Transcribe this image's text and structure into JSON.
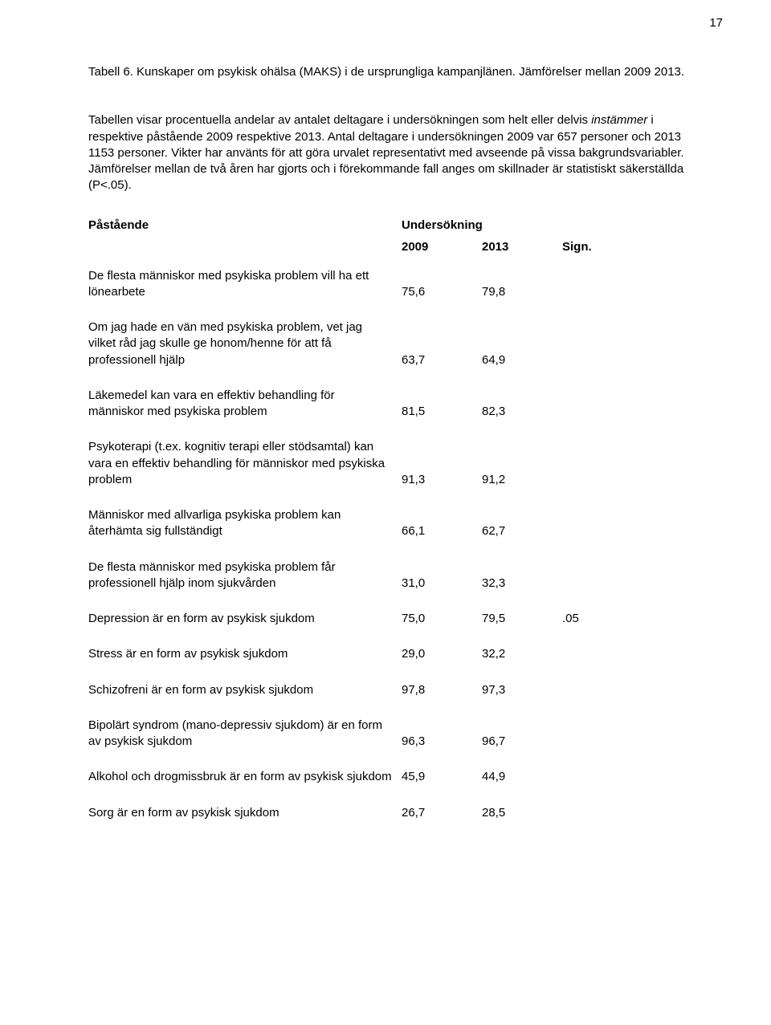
{
  "page_number": "17",
  "heading": {
    "line1_prefix": "Tabell 6. ",
    "line1_rest": "Kunskaper om psykisk ohälsa (MAKS) i de ursprungliga kampanjlänen. Jämförelser mellan 2009 2013.",
    "para_before_italic": "Tabellen visar procentuella andelar av antalet deltagare i undersökningen som helt eller delvis ",
    "italic_word": "instämmer",
    "para_after_italic": " i respektive påstående 2009 respektive 2013. Antal deltagare i undersökningen 2009 var 657 personer och 2013 1153 personer. Vikter har använts för att göra urvalet representativt med avseende på vissa bakgrundsvariabler. Jämförelser mellan de två åren har gjorts och i förekommande fall anges om skillnader är statistiskt säkerställda (P<.05)."
  },
  "table": {
    "col_statement": "Påstående",
    "col_survey": "Undersökning",
    "col_2009": "2009",
    "col_2013": "2013",
    "col_sign": "Sign.",
    "rows": [
      {
        "stmt": "De flesta människor med psykiska problem vill ha ett lönearbete",
        "v2009": "75,6",
        "v2013": "79,8",
        "sign": ""
      },
      {
        "stmt": "Om jag hade en vän med psykiska problem, vet jag vilket råd jag skulle ge honom/henne för att få professionell hjälp",
        "v2009": "63,7",
        "v2013": "64,9",
        "sign": ""
      },
      {
        "stmt": "Läkemedel kan vara en effektiv behandling för människor med psykiska problem",
        "v2009": "81,5",
        "v2013": "82,3",
        "sign": ""
      },
      {
        "stmt": "Psykoterapi (t.ex. kognitiv terapi eller stödsamtal) kan vara en effektiv behandling för människor med psykiska problem",
        "v2009": "91,3",
        "v2013": "91,2",
        "sign": ""
      },
      {
        "stmt": "Människor med allvarliga psykiska problem kan återhämta sig fullständigt",
        "v2009": "66,1",
        "v2013": "62,7",
        "sign": ""
      },
      {
        "stmt": "De flesta människor med psykiska problem får professionell hjälp inom sjukvården",
        "v2009": "31,0",
        "v2013": "32,3",
        "sign": ""
      },
      {
        "stmt": "Depression är en form av psykisk sjukdom",
        "v2009": "75,0",
        "v2013": "79,5",
        "sign": ".05"
      },
      {
        "stmt": "Stress är en form av psykisk sjukdom",
        "v2009": "29,0",
        "v2013": "32,2",
        "sign": ""
      },
      {
        "stmt": "Schizofreni är en form av psykisk sjukdom",
        "v2009": "97,8",
        "v2013": "97,3",
        "sign": ""
      },
      {
        "stmt": "Bipolärt syndrom (mano-depressiv sjukdom) är en form av psykisk sjukdom",
        "v2009": "96,3",
        "v2013": "96,7",
        "sign": ""
      },
      {
        "stmt": "Alkohol och drogmissbruk är en form av psykisk sjukdom",
        "v2009": "45,9",
        "v2013": "44,9",
        "sign": ""
      },
      {
        "stmt": "Sorg är en form av psykisk sjukdom",
        "v2009": "26,7",
        "v2013": "28,5",
        "sign": ""
      }
    ]
  }
}
